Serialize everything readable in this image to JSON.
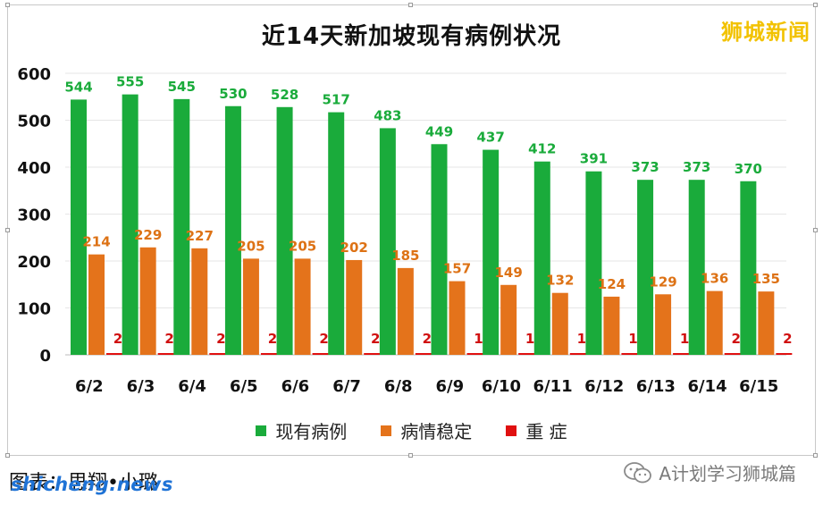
{
  "brand": "狮城新闻",
  "credit": "图表：思翔•小璐",
  "site": "shicheng.news",
  "wechat_account": "A计划学习狮城篇",
  "colors": {
    "existing": "#1aab3b",
    "stable": "#e4731b",
    "severe": "#e01010",
    "label_existing": "#1aab3b",
    "label_stable": "#dd7215",
    "label_severe": "#d01010",
    "brand": "#f2c200"
  },
  "chart_data": {
    "type": "bar",
    "title": "近14天新加坡现有病例状况",
    "categories": [
      "6/2",
      "6/3",
      "6/4",
      "6/5",
      "6/6",
      "6/7",
      "6/8",
      "6/9",
      "6/10",
      "6/11",
      "6/12",
      "6/13",
      "6/14",
      "6/15"
    ],
    "series": [
      {
        "name": "现有病例",
        "values": [
          544,
          555,
          545,
          530,
          528,
          517,
          483,
          449,
          437,
          412,
          391,
          373,
          373,
          370
        ]
      },
      {
        "name": "病情稳定",
        "values": [
          214,
          229,
          227,
          205,
          205,
          202,
          185,
          157,
          149,
          132,
          124,
          129,
          136,
          135
        ]
      },
      {
        "name": "重 症",
        "values": [
          2,
          2,
          2,
          2,
          2,
          2,
          2,
          1,
          1,
          1,
          1,
          1,
          2,
          2
        ]
      }
    ],
    "ylim": [
      0,
      600
    ],
    "yticks": [
      0,
      100,
      200,
      300,
      400,
      500,
      600
    ],
    "grid": true,
    "legend": "bottom",
    "data_labels": true
  }
}
